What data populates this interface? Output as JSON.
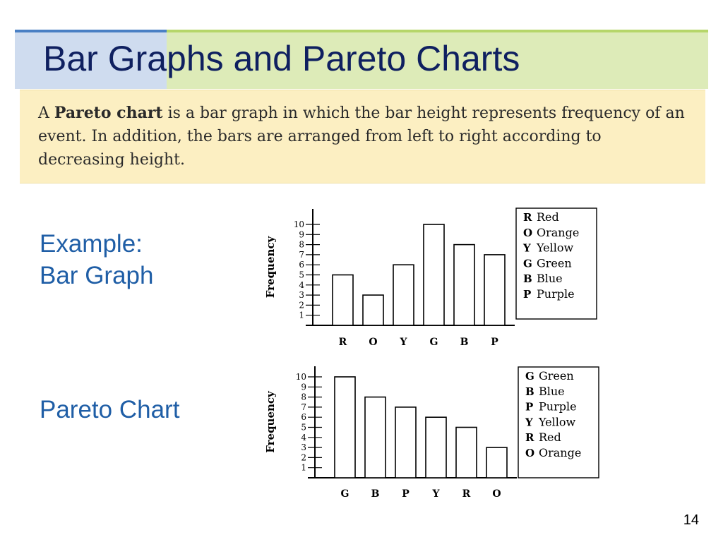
{
  "slide": {
    "title": "Bar Graphs and Pareto Charts",
    "definition_a": "A ",
    "definition_bold": "Pareto chart",
    "definition_rest": " is a bar graph in which the bar height represents frequency of an event. In addition, the bars are arranged from left to right according to decreasing height.",
    "label_example": "Example:",
    "label_bar_graph": "Bar Graph",
    "label_pareto": "Pareto Chart",
    "page_number": "14"
  },
  "colors": {
    "title_text": "#0f2060",
    "label_text": "#1f5ea6",
    "definition_bg": "#fcefc2",
    "title_left_bg": "#cfdcef",
    "title_right_bg": "#ddebb8"
  },
  "chart_data": [
    {
      "type": "bar",
      "ylabel": "Frequency",
      "ylim": [
        0,
        10
      ],
      "yticks": [
        "1",
        "2",
        "3",
        "4",
        "5",
        "6",
        "7",
        "8",
        "9",
        "10"
      ],
      "categories": [
        "R",
        "O",
        "Y",
        "G",
        "B",
        "P"
      ],
      "values": [
        5,
        3,
        6,
        10,
        8,
        7
      ],
      "legend": [
        {
          "code": "R",
          "label": "Red"
        },
        {
          "code": "O",
          "label": "Orange"
        },
        {
          "code": "Y",
          "label": "Yellow"
        },
        {
          "code": "G",
          "label": "Green"
        },
        {
          "code": "B",
          "label": "Blue"
        },
        {
          "code": "P",
          "label": "Purple"
        }
      ],
      "legend_position": "right"
    },
    {
      "type": "bar",
      "ylabel": "Frequency",
      "ylim": [
        0,
        10
      ],
      "yticks": [
        "1",
        "2",
        "3",
        "4",
        "5",
        "6",
        "7",
        "8",
        "9",
        "10"
      ],
      "categories": [
        "G",
        "B",
        "P",
        "Y",
        "R",
        "O"
      ],
      "values": [
        10,
        8,
        7,
        6,
        5,
        3
      ],
      "legend": [
        {
          "code": "G",
          "label": "Green"
        },
        {
          "code": "B",
          "label": "Blue"
        },
        {
          "code": "P",
          "label": "Purple"
        },
        {
          "code": "Y",
          "label": "Yellow"
        },
        {
          "code": "R",
          "label": "Red"
        },
        {
          "code": "O",
          "label": "Orange"
        }
      ],
      "legend_position": "right"
    }
  ]
}
